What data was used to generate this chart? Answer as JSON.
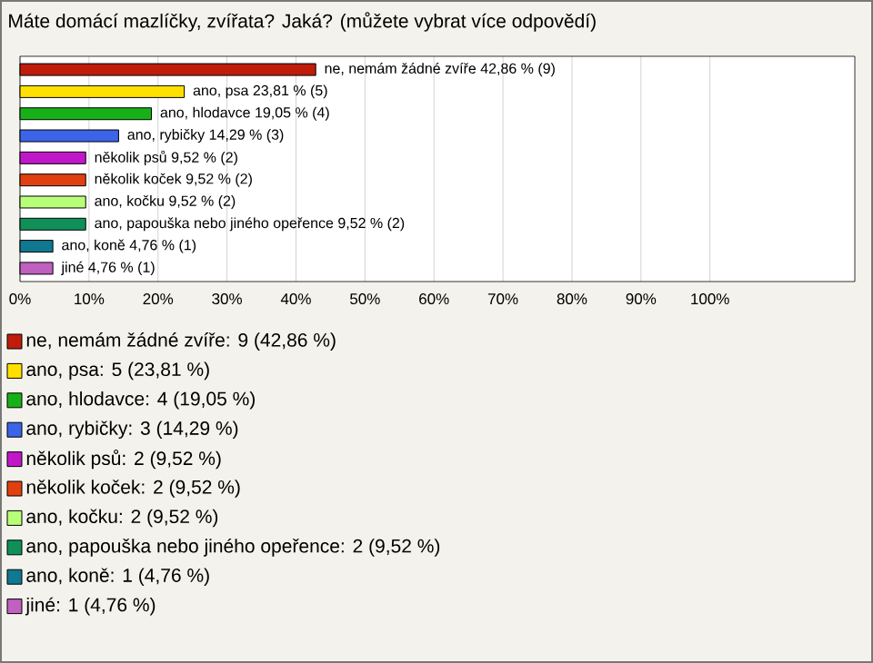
{
  "chart_data": {
    "type": "bar",
    "orientation": "horizontal",
    "title": "Máte domácí mazlíčky, zvířata? Jaká? (můžete vybrat více odpovědí)",
    "categories": [
      null,
      null,
      null,
      null,
      null,
      null,
      null,
      null,
      null,
      null
    ],
    "values": [
      42.86,
      23.81,
      19.05,
      14.29,
      9.52,
      9.52,
      9.52,
      9.52,
      4.76,
      4.76
    ],
    "value_labels": [
      "ne, nemám žádné zvíře 42,86 % (9)",
      "ano, psa 23,81 % (5)",
      "ano, hlodavce 19,05 % (4)",
      "ano, rybičky 14,29 % (3)",
      "několik psů 9,52 % (2)",
      "několik koček 9,52 % (2)",
      "ano, kočku 9,52 % (2)",
      "ano, papouška nebo jiného opeřence 9,52 % (2)",
      "ano, koně 4,76 % (1)",
      "jiné 4,76 % (1)"
    ],
    "colors": [
      "#c01c0c",
      "#ffe000",
      "#18b018",
      "#3c64e8",
      "#c018c8",
      "#e04010",
      "#b8ff78",
      "#109058",
      "#107890",
      "#c060c0"
    ],
    "xlim": [
      0,
      121
    ],
    "xticks": [
      {
        "value": 0,
        "label": "0%"
      },
      {
        "value": 10,
        "label": "10%"
      },
      {
        "value": 20,
        "label": "20%"
      },
      {
        "value": 30,
        "label": "30%"
      },
      {
        "value": 40,
        "label": "40%"
      },
      {
        "value": 50,
        "label": "50%"
      },
      {
        "value": 60,
        "label": "60%"
      },
      {
        "value": 70,
        "label": "70%"
      },
      {
        "value": 80,
        "label": "80%"
      },
      {
        "value": 90,
        "label": "90%"
      },
      {
        "value": 100,
        "label": "100%"
      }
    ],
    "grid": "x",
    "annotations": [
      "ne, nemám žádné zvíře: 9 (42,86 %)",
      "ano, psa: 5 (23,81 %)",
      "ano, hlodavce: 4 (19,05 %)",
      "ano, rybičky: 3 (14,29 %)",
      "několik psů: 2 (9,52 %)",
      "několik koček: 2 (9,52 %)",
      "ano, kočku: 2 (9,52 %)",
      "ano, papouška nebo jiného opeřence: 2 (9,52 %)",
      "ano, koně: 1 (4,76 %)",
      "jiné: 1 (4,76 %)"
    ]
  }
}
